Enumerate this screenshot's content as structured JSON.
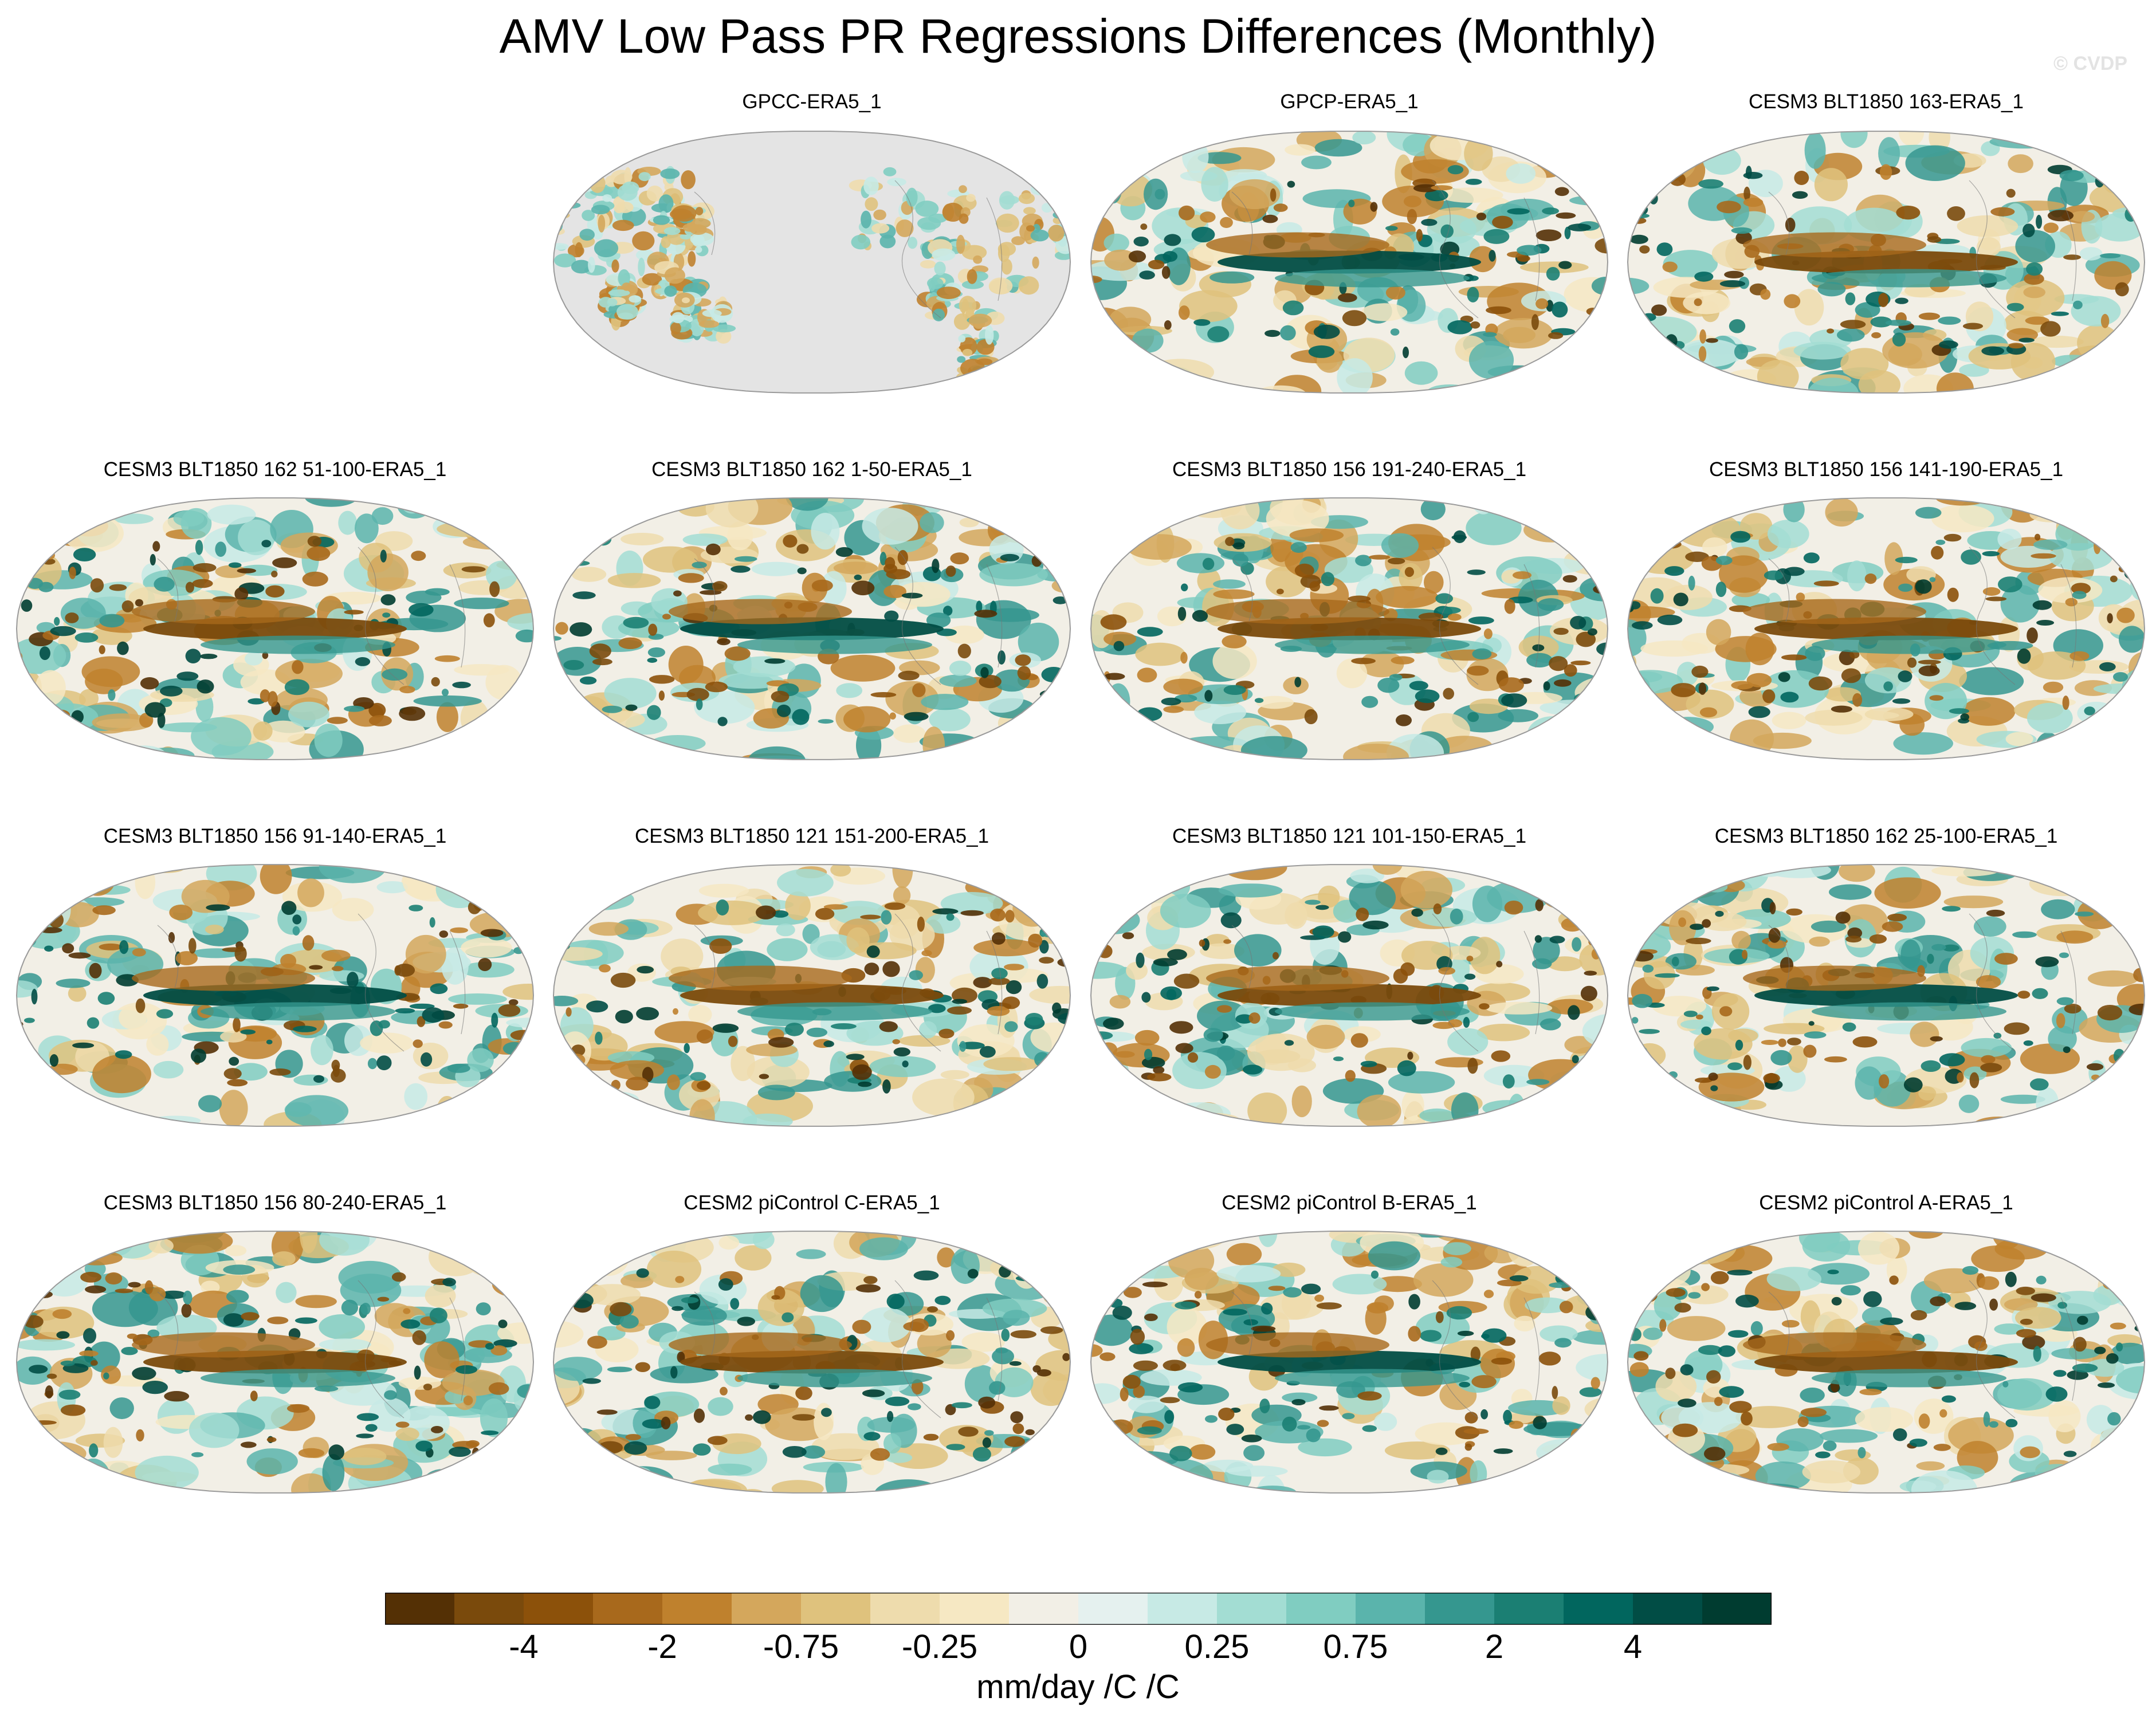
{
  "title": "AMV Low Pass PR Regressions Differences (Monthly)",
  "watermark": "© CVDP",
  "panels": [
    {
      "label": "GPCC-ERA5_1",
      "pattern": "land-only"
    },
    {
      "label": "GPCP-ERA5_1",
      "pattern": "full"
    },
    {
      "label": "CESM3 BLT1850 163-ERA5_1",
      "pattern": "full"
    },
    {
      "label": "CESM3 BLT1850 162 51-100-ERA5_1",
      "pattern": "full"
    },
    {
      "label": "CESM3 BLT1850 162 1-50-ERA5_1",
      "pattern": "full"
    },
    {
      "label": "CESM3 BLT1850 156 191-240-ERA5_1",
      "pattern": "full"
    },
    {
      "label": "CESM3 BLT1850 156 141-190-ERA5_1",
      "pattern": "full"
    },
    {
      "label": "CESM3 BLT1850 156 91-140-ERA5_1",
      "pattern": "full"
    },
    {
      "label": "CESM3 BLT1850 121 151-200-ERA5_1",
      "pattern": "full"
    },
    {
      "label": "CESM3 BLT1850 121 101-150-ERA5_1",
      "pattern": "full"
    },
    {
      "label": "CESM3 BLT1850 162 25-100-ERA5_1",
      "pattern": "full"
    },
    {
      "label": "CESM3 BLT1850 156 80-240-ERA5_1",
      "pattern": "full"
    },
    {
      "label": "CESM2 piControl C-ERA5_1",
      "pattern": "full"
    },
    {
      "label": "CESM2 piControl B-ERA5_1",
      "pattern": "full"
    },
    {
      "label": "CESM2 piControl A-ERA5_1",
      "pattern": "full"
    }
  ],
  "chart_data": {
    "type": "heatmap",
    "title": "AMV Low Pass PR Regressions Differences (Monthly)",
    "projection": "Robinson (Pacific-centered)",
    "colorbar": {
      "units": "mm/day /C /C",
      "levels": [
        -5,
        -4,
        -3,
        -2,
        -1,
        -0.75,
        -0.5,
        -0.25,
        0,
        0.25,
        0.5,
        0.75,
        1,
        2,
        3,
        4,
        5
      ],
      "tick_labels": [
        "-4",
        "-2",
        "-0.75",
        "-0.25",
        "0",
        "0.25",
        "0.75",
        "2",
        "4"
      ],
      "tick_values": [
        -4,
        -2,
        -0.75,
        -0.25,
        0,
        0.25,
        0.75,
        2,
        4
      ],
      "colors": [
        "#543005",
        "#7a4a0c",
        "#8c510a",
        "#a8691c",
        "#bf812d",
        "#d4a75c",
        "#dfc27d",
        "#eedcad",
        "#f6e8c3",
        "#f2efe6",
        "#e5f1ef",
        "#c7eae5",
        "#a3ddd3",
        "#80cdc1",
        "#5ab4ac",
        "#35978f",
        "#1b7f73",
        "#01665e",
        "#014d45",
        "#003c30"
      ],
      "missing_color": "#e4e4e4"
    }
  }
}
